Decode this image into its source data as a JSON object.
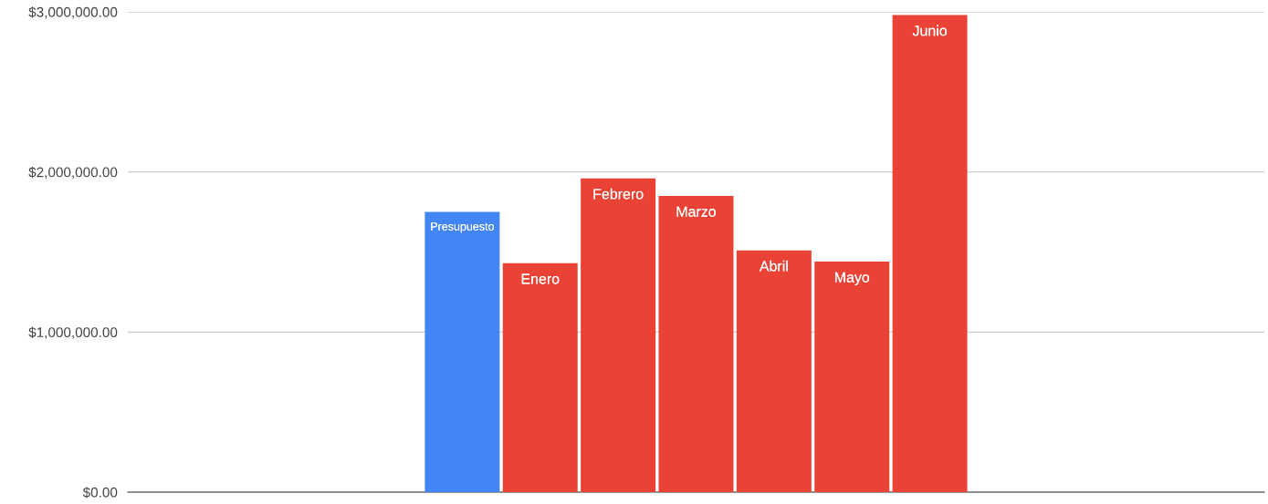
{
  "chart_data": {
    "type": "bar",
    "categories": [
      null
    ],
    "series": [
      {
        "name": "Presupuesto",
        "color": "#4285f4",
        "values": [
          1750000
        ]
      },
      {
        "name": "Enero",
        "color": "#ea4335",
        "values": [
          1430000
        ]
      },
      {
        "name": "Febrero",
        "color": "#ea4335",
        "values": [
          1960000
        ]
      },
      {
        "name": "Marzo",
        "color": "#ea4335",
        "values": [
          1850000
        ]
      },
      {
        "name": "Abril",
        "color": "#ea4335",
        "values": [
          1510000
        ]
      },
      {
        "name": "Mayo",
        "color": "#ea4335",
        "values": [
          1440000
        ]
      },
      {
        "name": "Junio",
        "color": "#ea4335",
        "values": [
          2980000
        ]
      }
    ],
    "ylim": [
      0,
      3000000
    ],
    "yticks": [
      {
        "value": 0,
        "label": "$0.00"
      },
      {
        "value": 1000000,
        "label": "$1,000,000.00"
      },
      {
        "value": 2000000,
        "label": "$2,000,000.00"
      },
      {
        "value": 3000000,
        "label": "$3,000,000.00"
      }
    ],
    "grid": "y",
    "legend": false
  }
}
